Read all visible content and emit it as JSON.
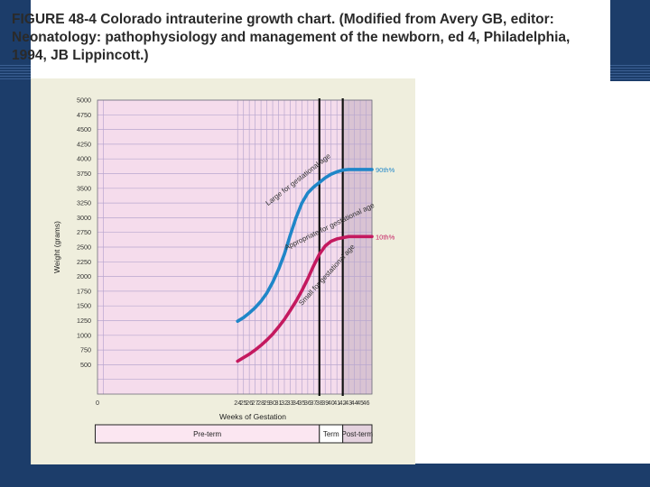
{
  "caption": "FIGURE 48-4 Colorado intrauterine growth chart. (Modified from Avery GB, editor: Neonatology: pathophysiology and management of the newborn, ed 4, Philadelphia, 1994, JB Lippincott.)",
  "colors": {
    "upper_curve": "#1f86c8",
    "lower_curve": "#c4195f",
    "plot_background": "#f5dcec",
    "postterm_shade": "#d9c3d3",
    "slide_band": "#1c3d6a"
  },
  "chart_data": {
    "type": "line",
    "xlabel": "Weeks of Gestation",
    "ylabel": "Weight (grams)",
    "xlim": [
      0,
      47
    ],
    "ylim": [
      0,
      5000
    ],
    "x_ticks": [
      "0",
      "24",
      "25",
      "26",
      "27",
      "28",
      "29",
      "30",
      "31",
      "32",
      "33",
      "34",
      "35",
      "36",
      "37",
      "38",
      "39",
      "40",
      "41",
      "42",
      "43",
      "44",
      "45",
      "46"
    ],
    "y_ticks": [
      "500",
      "750",
      "1000",
      "1250",
      "1500",
      "1750",
      "2000",
      "2250",
      "2500",
      "2750",
      "3000",
      "3250",
      "3500",
      "3750",
      "4000",
      "4250",
      "4500",
      "4750",
      "5000"
    ],
    "grid": true,
    "series": [
      {
        "name": "90th%",
        "x": [
          24,
          25,
          26,
          27,
          28,
          29,
          30,
          31,
          32,
          33,
          34,
          35,
          36,
          37,
          38,
          39,
          40,
          41,
          42,
          43,
          44,
          45,
          46,
          47
        ],
        "values": [
          1240,
          1300,
          1380,
          1470,
          1580,
          1720,
          1900,
          2120,
          2380,
          2700,
          3000,
          3250,
          3420,
          3520,
          3600,
          3680,
          3740,
          3780,
          3810,
          3820,
          3820,
          3820,
          3820,
          3820
        ]
      },
      {
        "name": "10th%",
        "x": [
          24,
          25,
          26,
          27,
          28,
          29,
          30,
          31,
          32,
          33,
          34,
          35,
          36,
          37,
          38,
          39,
          40,
          41,
          42,
          43,
          44,
          45,
          46,
          47
        ],
        "values": [
          560,
          620,
          680,
          750,
          830,
          920,
          1020,
          1140,
          1270,
          1420,
          1580,
          1760,
          1960,
          2180,
          2380,
          2520,
          2600,
          2640,
          2660,
          2680,
          2680,
          2680,
          2680,
          2680
        ]
      }
    ],
    "boundaries": [
      38,
      42
    ],
    "region_labels": [
      {
        "label": "Large for gestational age"
      },
      {
        "label": "Appropriate for gestational age"
      },
      {
        "label": "Small for gestational age"
      }
    ],
    "period_labels": [
      "Pre-term",
      "Term",
      "Post-term"
    ]
  }
}
